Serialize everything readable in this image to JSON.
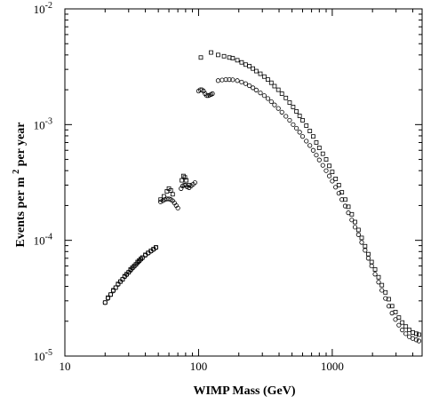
{
  "chart_data": {
    "type": "scatter",
    "xscale": "log",
    "yscale": "log",
    "xlim": [
      10,
      4700
    ],
    "ylim": [
      1e-05,
      0.01
    ],
    "xlabel": "WIMP Mass   (GeV)",
    "ylabel": "Events per m² per year",
    "ylabel_parts": {
      "before": "Events per m",
      "sup": "2",
      "after": " per year"
    },
    "grid": false,
    "xticks": [
      {
        "value": 10,
        "label": "10"
      },
      {
        "value": 100,
        "label": "100"
      },
      {
        "value": 1000,
        "label": "1000"
      }
    ],
    "yticks": [
      {
        "value": 1e-05,
        "base": "10",
        "exp": "-5"
      },
      {
        "value": 0.0001,
        "base": "10",
        "exp": "-4"
      },
      {
        "value": 0.001,
        "base": "10",
        "exp": "-3"
      },
      {
        "value": 0.01,
        "base": "10",
        "exp": "-2"
      }
    ],
    "series": [
      {
        "marker": "square",
        "points": [
          [
            20,
            2.9e-05
          ],
          [
            21,
            3.2e-05
          ],
          [
            22,
            3.4e-05
          ],
          [
            23,
            3.7e-05
          ],
          [
            24,
            3.9e-05
          ],
          [
            25,
            4.2e-05
          ],
          [
            26,
            4.4e-05
          ],
          [
            27,
            4.6e-05
          ],
          [
            28,
            4.9e-05
          ],
          [
            29,
            5.1e-05
          ],
          [
            30,
            5.3e-05
          ],
          [
            31,
            5.6e-05
          ],
          [
            32,
            5.8e-05
          ],
          [
            33,
            6e-05
          ],
          [
            34,
            6.2e-05
          ],
          [
            35,
            6.5e-05
          ],
          [
            36,
            6.7e-05
          ],
          [
            37,
            6.9e-05
          ],
          [
            38,
            7.1e-05
          ],
          [
            40,
            7.5e-05
          ],
          [
            42,
            7.8e-05
          ],
          [
            44,
            8.1e-05
          ],
          [
            46,
            8.4e-05
          ],
          [
            48,
            8.7e-05
          ],
          [
            52,
            0.000225
          ],
          [
            55,
            0.00024
          ],
          [
            58,
            0.000265
          ],
          [
            60,
            0.00028
          ],
          [
            62,
            0.00027
          ],
          [
            64,
            0.00025
          ],
          [
            75,
            0.00033
          ],
          [
            77,
            0.00036
          ],
          [
            79,
            0.00035
          ],
          [
            81,
            0.00033
          ],
          [
            85,
            0.0003
          ],
          [
            104,
            0.0038
          ],
          [
            124,
            0.0042
          ],
          [
            140,
            0.004
          ],
          [
            155,
            0.0039
          ],
          [
            170,
            0.0038
          ],
          [
            180,
            0.00375
          ],
          [
            195,
            0.0036
          ],
          [
            210,
            0.00345
          ],
          [
            225,
            0.0033
          ],
          [
            240,
            0.0032
          ],
          [
            255,
            0.00305
          ],
          [
            270,
            0.0029
          ],
          [
            290,
            0.00275
          ],
          [
            310,
            0.0026
          ],
          [
            330,
            0.00245
          ],
          [
            350,
            0.0023
          ],
          [
            370,
            0.00215
          ],
          [
            395,
            0.002
          ],
          [
            420,
            0.00185
          ],
          [
            450,
            0.0017
          ],
          [
            480,
            0.00155
          ],
          [
            510,
            0.00142
          ],
          [
            540,
            0.0013
          ],
          [
            570,
            0.00119
          ],
          [
            600,
            0.00109
          ],
          [
            640,
            0.00098
          ],
          [
            680,
            0.00088
          ],
          [
            720,
            0.00079
          ],
          [
            760,
            0.0007
          ],
          [
            800,
            0.00063
          ],
          [
            850,
            0.00056
          ],
          [
            900,
            0.0005
          ],
          [
            950,
            0.00044
          ],
          [
            1000,
            0.00039
          ],
          [
            1060,
            0.00034
          ],
          [
            1120,
            0.0003
          ],
          [
            1180,
            0.00026
          ],
          [
            1250,
            0.000225
          ],
          [
            1320,
            0.000195
          ],
          [
            1400,
            0.000168
          ],
          [
            1480,
            0.000144
          ],
          [
            1570,
            0.000123
          ],
          [
            1660,
            0.000105
          ],
          [
            1760,
            8.9e-05
          ],
          [
            1860,
            7.6e-05
          ],
          [
            1970,
            6.5e-05
          ],
          [
            2090,
            5.6e-05
          ],
          [
            2220,
            4.8e-05
          ],
          [
            2350,
            4.1e-05
          ],
          [
            2500,
            3.55e-05
          ],
          [
            2650,
            3.1e-05
          ],
          [
            2800,
            2.7e-05
          ],
          [
            2970,
            2.4e-05
          ],
          [
            3150,
            2.15e-05
          ],
          [
            3340,
            1.95e-05
          ],
          [
            3550,
            1.8e-05
          ],
          [
            3770,
            1.68e-05
          ],
          [
            4000,
            1.6e-05
          ],
          [
            4250,
            1.56e-05
          ],
          [
            4450,
            1.53e-05
          ]
        ]
      },
      {
        "marker": "circle",
        "points": [
          [
            20,
            2.9e-05
          ],
          [
            21,
            3.15e-05
          ],
          [
            22,
            3.4e-05
          ],
          [
            23,
            3.65e-05
          ],
          [
            24,
            3.9e-05
          ],
          [
            25,
            4.15e-05
          ],
          [
            26,
            4.4e-05
          ],
          [
            27,
            4.6e-05
          ],
          [
            28,
            4.85e-05
          ],
          [
            29,
            5.05e-05
          ],
          [
            30,
            5.3e-05
          ],
          [
            31,
            5.5e-05
          ],
          [
            32,
            5.75e-05
          ],
          [
            33,
            5.95e-05
          ],
          [
            34,
            6.2e-05
          ],
          [
            35,
            6.4e-05
          ],
          [
            36,
            6.6e-05
          ],
          [
            37,
            6.85e-05
          ],
          [
            38,
            7.05e-05
          ],
          [
            40,
            7.4e-05
          ],
          [
            42,
            7.75e-05
          ],
          [
            44,
            8.05e-05
          ],
          [
            46,
            8.35e-05
          ],
          [
            48,
            8.65e-05
          ],
          [
            52,
            0.000215
          ],
          [
            54,
            0.00022
          ],
          [
            56,
            0.000225
          ],
          [
            58,
            0.000228
          ],
          [
            60,
            0.000228
          ],
          [
            62,
            0.000225
          ],
          [
            64,
            0.00022
          ],
          [
            66,
            0.00021
          ],
          [
            68,
            0.0002
          ],
          [
            70,
            0.00019
          ],
          [
            74,
            0.00028
          ],
          [
            76,
            0.000295
          ],
          [
            78,
            0.0003
          ],
          [
            80,
            0.0003
          ],
          [
            82,
            0.00029
          ],
          [
            85,
            0.000285
          ],
          [
            88,
            0.000295
          ],
          [
            91,
            0.000305
          ],
          [
            94,
            0.000315
          ],
          [
            100,
            0.00195
          ],
          [
            103,
            0.002
          ],
          [
            106,
            0.002
          ],
          [
            109,
            0.00195
          ],
          [
            112,
            0.00185
          ],
          [
            115,
            0.00178
          ],
          [
            118,
            0.00178
          ],
          [
            121,
            0.0018
          ],
          [
            124,
            0.00182
          ],
          [
            127,
            0.00185
          ],
          [
            140,
            0.0024
          ],
          [
            150,
            0.00243
          ],
          [
            160,
            0.00245
          ],
          [
            170,
            0.00245
          ],
          [
            180,
            0.00244
          ],
          [
            195,
            0.0024
          ],
          [
            210,
            0.00233
          ],
          [
            225,
            0.00226
          ],
          [
            240,
            0.00217
          ],
          [
            255,
            0.00208
          ],
          [
            270,
            0.00199
          ],
          [
            290,
            0.00188
          ],
          [
            310,
            0.00178
          ],
          [
            330,
            0.00168
          ],
          [
            350,
            0.00158
          ],
          [
            370,
            0.00148
          ],
          [
            395,
            0.00138
          ],
          [
            420,
            0.00128
          ],
          [
            450,
            0.00118
          ],
          [
            480,
            0.00109
          ],
          [
            510,
            0.001
          ],
          [
            540,
            0.00093
          ],
          [
            570,
            0.00086
          ],
          [
            600,
            0.00079
          ],
          [
            640,
            0.00072
          ],
          [
            680,
            0.00066
          ],
          [
            720,
            0.0006
          ],
          [
            760,
            0.000545
          ],
          [
            800,
            0.000495
          ],
          [
            850,
            0.000445
          ],
          [
            900,
            0.0004
          ],
          [
            950,
            0.00036
          ],
          [
            1000,
            0.000325
          ],
          [
            1060,
            0.000288
          ],
          [
            1120,
            0.000255
          ],
          [
            1180,
            0.000225
          ],
          [
            1250,
            0.000198
          ],
          [
            1320,
            0.000173
          ],
          [
            1400,
            0.00015
          ],
          [
            1480,
            0.00013
          ],
          [
            1570,
            0.000112
          ],
          [
            1660,
            9.6e-05
          ],
          [
            1760,
            8.2e-05
          ],
          [
            1860,
            7e-05
          ],
          [
            1970,
            6e-05
          ],
          [
            2090,
            5.1e-05
          ],
          [
            2220,
            4.35e-05
          ],
          [
            2350,
            3.7e-05
          ],
          [
            2500,
            3.15e-05
          ],
          [
            2650,
            2.7e-05
          ],
          [
            2800,
            2.35e-05
          ],
          [
            2970,
            2.07e-05
          ],
          [
            3150,
            1.85e-05
          ],
          [
            3340,
            1.68e-05
          ],
          [
            3550,
            1.56e-05
          ],
          [
            3770,
            1.47e-05
          ],
          [
            4000,
            1.42e-05
          ],
          [
            4250,
            1.38e-05
          ],
          [
            4450,
            1.35e-05
          ]
        ]
      }
    ]
  }
}
